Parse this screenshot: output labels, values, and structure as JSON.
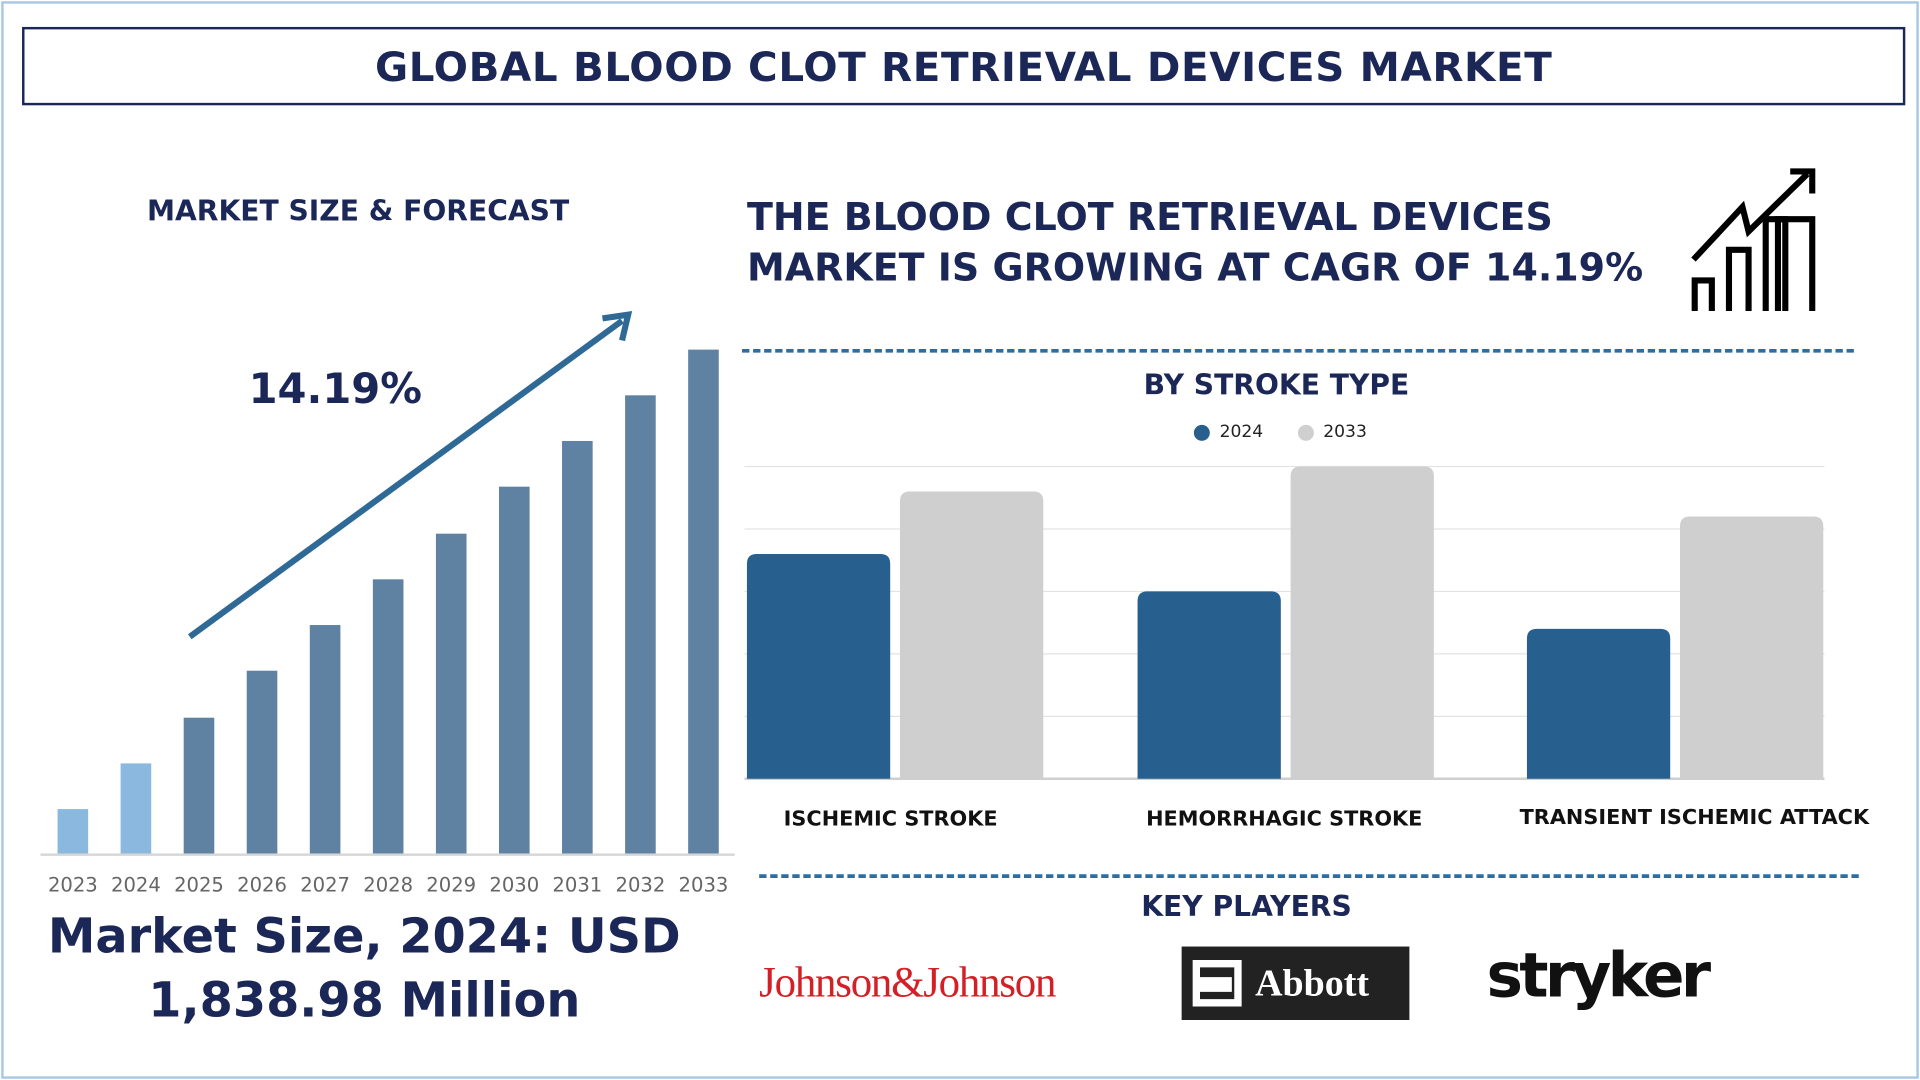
{
  "title": "GLOBAL BLOOD CLOT RETRIEVAL DEVICES MARKET",
  "left_panel": {
    "heading": "MARKET SIZE & FORECAST",
    "cagr_label": "14.19%",
    "market_size_line1": "Market Size, 2024: USD",
    "market_size_line2": "1,838.98 Million"
  },
  "right_panel": {
    "headline_line1": "THE BLOOD CLOT RETRIEVAL DEVICES",
    "headline_line2": "MARKET IS GROWING AT CAGR OF 14.19%",
    "growth_icon": "bar-chart-growth-arrow-icon",
    "key_players_heading": "KEY PLAYERS",
    "key_players": [
      "Johnson&Johnson",
      "Abbott",
      "stryker"
    ]
  },
  "colors": {
    "navy": "#1b2757",
    "bar_historic": "#8ab8de",
    "bar_forecast": "#5f82a3",
    "series_2024": "#275f8e",
    "series_2033": "#cfcfcf",
    "jnj_red": "#d51f26"
  },
  "chart_data": [
    {
      "type": "bar",
      "title": "",
      "categories": [
        "2023",
        "2024",
        "2025",
        "2026",
        "2027",
        "2028",
        "2029",
        "2030",
        "2031",
        "2032",
        "2033"
      ],
      "values": [
        906,
        1838.98,
        2772,
        3731,
        4664,
        5597,
        6529,
        7489,
        8422,
        9354,
        10287
      ],
      "ylim": [
        0,
        11000
      ],
      "grid": false,
      "trend_arrow_label": "14.19%"
    },
    {
      "type": "bar",
      "title": "BY STROKE TYPE",
      "categories": [
        "ISCHEMIC STROKE",
        "HEMORRHAGIC STROKE",
        "TRANSIENT ISCHEMIC ATTACK"
      ],
      "series": [
        {
          "name": "2024",
          "values": [
            3.6,
            3.0,
            2.4
          ]
        },
        {
          "name": "2033",
          "values": [
            4.6,
            5.0,
            4.2
          ]
        }
      ],
      "ylim": [
        0,
        5
      ],
      "grid": true,
      "legend": "top-center"
    }
  ]
}
